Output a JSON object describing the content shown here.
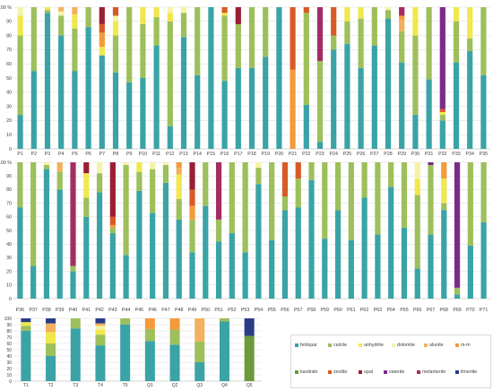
{
  "chart_data": {
    "type": "bar",
    "stacked": true,
    "legend": {
      "entries": [
        "feldspar",
        "calcite",
        "anhydrite",
        "dolomite",
        "alunite",
        "m-m",
        "kaolinite",
        "zeolite",
        "opal",
        "vaterite",
        "melanterite",
        "ilmenite"
      ],
      "placement": "bottom-right"
    },
    "series_colors": {
      "feldspar": "#3aa3a6",
      "calcite": "#9dbf5c",
      "anhydrite": "#f0e84c",
      "dolomite": "#f4f3a8",
      "alunite": "#f2b15e",
      "m-m": "#f49a3a",
      "kaolinite": "#6b9a3a",
      "zeolite": "#d85a26",
      "opal": "#9a1e32",
      "vaterite": "#7b2a8a",
      "melanterite": "#a52c63",
      "ilmenite": "#2a3c86"
    },
    "ytick_labels": [
      "0",
      "10",
      "20",
      "30",
      "40",
      "50",
      "60",
      "70",
      "80",
      "90",
      "100 %"
    ],
    "ytick_labels_small": [
      "0",
      "10",
      "20",
      "30",
      "40",
      "50",
      "60",
      "70",
      "80",
      "90",
      "100"
    ],
    "panels": [
      {
        "categories": [
          "P1",
          "P2",
          "P3",
          "P4",
          "P5",
          "P6",
          "P7",
          "P8",
          "P9",
          "P10",
          "P11",
          "P12",
          "P13",
          "P14",
          "P15",
          "P16",
          "P17",
          "P18",
          "P19",
          "P20",
          "P21",
          "P22",
          "P23",
          "P24",
          "P25",
          "P26",
          "P27",
          "P28",
          "P29",
          "P30",
          "P31",
          "P32",
          "P33",
          "P34",
          "P35"
        ],
        "ylim": [
          0,
          100
        ],
        "bars": [
          {
            "feldspar": 24,
            "calcite": 56,
            "anhydrite": 14,
            "dolomite": 6
          },
          {
            "feldspar": 55,
            "calcite": 45
          },
          {
            "feldspar": 96,
            "calcite": 2,
            "anhydrite": 2
          },
          {
            "feldspar": 80,
            "calcite": 14,
            "dolomite": 3,
            "alunite": 3
          },
          {
            "feldspar": 55,
            "calcite": 30,
            "anhydrite": 10,
            "alunite": 5
          },
          {
            "feldspar": 86,
            "calcite": 14
          },
          {
            "feldspar": 66,
            "anhydrite": 6,
            "m-m": 10,
            "zeolite": 6,
            "opal": 12
          },
          {
            "feldspar": 54,
            "calcite": 26,
            "anhydrite": 10,
            "dolomite": 4,
            "zeolite": 6
          },
          {
            "feldspar": 47,
            "calcite": 53
          },
          {
            "feldspar": 50,
            "calcite": 38,
            "anhydrite": 12
          },
          {
            "feldspar": 73,
            "calcite": 20,
            "anhydrite": 7
          },
          {
            "feldspar": 16,
            "calcite": 74,
            "anhydrite": 6,
            "dolomite": 4
          },
          {
            "feldspar": 79,
            "calcite": 17,
            "dolomite": 4
          },
          {
            "feldspar": 52,
            "calcite": 48
          },
          {
            "feldspar": 100
          },
          {
            "feldspar": 48,
            "calcite": 46,
            "anhydrite": 2,
            "zeolite": 4
          },
          {
            "feldspar": 57,
            "calcite": 31,
            "opal": 12
          },
          {
            "feldspar": 57,
            "calcite": 43
          },
          {
            "feldspar": 65,
            "calcite": 35
          },
          {
            "feldspar": 100
          },
          {
            "zeolite": 44,
            "m-m": 56
          },
          {
            "feldspar": 31,
            "calcite": 65,
            "zeolite": 4
          },
          {
            "feldspar": 5,
            "calcite": 57,
            "melanterite": 38
          },
          {
            "feldspar": 70,
            "calcite": 10,
            "zeolite": 20
          },
          {
            "feldspar": 74,
            "calcite": 16,
            "anhydrite": 10
          },
          {
            "feldspar": 57,
            "calcite": 35,
            "anhydrite": 8
          },
          {
            "feldspar": 73,
            "calcite": 27
          },
          {
            "feldspar": 92,
            "calcite": 6,
            "dolomite": 2
          },
          {
            "feldspar": 61,
            "calcite": 22,
            "alunite": 8,
            "m-m": 3,
            "melanterite": 6
          },
          {
            "feldspar": 24,
            "calcite": 56,
            "anhydrite": 20
          },
          {
            "feldspar": 49,
            "calcite": 51
          },
          {
            "feldspar": 20,
            "calcite": 4,
            "anhydrite": 2,
            "zeolite": 2,
            "vaterite": 72
          },
          {
            "feldspar": 61,
            "calcite": 29,
            "anhydrite": 10
          },
          {
            "feldspar": 69,
            "calcite": 9,
            "anhydrite": 22
          },
          {
            "feldspar": 52,
            "calcite": 48
          }
        ]
      },
      {
        "categories": [
          "P36",
          "P37",
          "P38",
          "P39",
          "P40",
          "P41",
          "P42",
          "P43",
          "P44",
          "P45",
          "P46",
          "P47",
          "P48",
          "P49",
          "P50",
          "P51",
          "P52",
          "P53",
          "P54",
          "P55",
          "P56",
          "P57",
          "P58",
          "P59",
          "P60",
          "P61",
          "P62",
          "P63",
          "P64",
          "P65",
          "P66",
          "P67",
          "P68",
          "P69",
          "P70",
          "P71"
        ],
        "ylim": [
          0,
          100
        ],
        "bars": [
          {
            "feldspar": 67,
            "calcite": 33
          },
          {
            "feldspar": 24,
            "calcite": 76
          },
          {
            "feldspar": 95,
            "calcite": 3,
            "dolomite": 2
          },
          {
            "feldspar": 80,
            "calcite": 13,
            "alunite": 7
          },
          {
            "feldspar": 20,
            "calcite": 4,
            "melanterite": 76
          },
          {
            "feldspar": 60,
            "calcite": 14,
            "anhydrite": 18,
            "opal": 8
          },
          {
            "feldspar": 78,
            "calcite": 14,
            "dolomite": 8
          },
          {
            "feldspar": 48,
            "calcite": 4,
            "m-m": 2,
            "zeolite": 6,
            "opal": 40
          },
          {
            "feldspar": 32,
            "calcite": 66,
            "dolomite": 2
          },
          {
            "feldspar": 79,
            "calcite": 14,
            "anhydrite": 7
          },
          {
            "feldspar": 63,
            "calcite": 32,
            "dolomite": 5
          },
          {
            "feldspar": 85,
            "calcite": 13,
            "dolomite": 2
          },
          {
            "feldspar": 58,
            "calcite": 15,
            "anhydrite": 18,
            "alunite": 5,
            "m-m": 4
          },
          {
            "feldspar": 34,
            "calcite": 24,
            "m-m": 10,
            "zeolite": 12,
            "opal": 20
          },
          {
            "feldspar": 68,
            "calcite": 32
          },
          {
            "feldspar": 42,
            "calcite": 16,
            "melanterite": 42
          },
          {
            "feldspar": 48,
            "calcite": 52
          },
          {
            "feldspar": 34,
            "calcite": 66
          },
          {
            "feldspar": 84,
            "calcite": 12,
            "dolomite": 4
          },
          {
            "feldspar": 43,
            "calcite": 57
          },
          {
            "feldspar": 65,
            "calcite": 10,
            "zeolite": 25
          },
          {
            "feldspar": 67,
            "calcite": 21,
            "zeolite": 12
          },
          {
            "feldspar": 87,
            "calcite": 13
          },
          {
            "feldspar": 44,
            "calcite": 56
          },
          {
            "feldspar": 65,
            "calcite": 35
          },
          {
            "feldspar": 43,
            "calcite": 57
          },
          {
            "feldspar": 74,
            "calcite": 26
          },
          {
            "feldspar": 47,
            "calcite": 53
          },
          {
            "feldspar": 82,
            "calcite": 18
          },
          {
            "feldspar": 52,
            "calcite": 48
          },
          {
            "feldspar": 22,
            "calcite": 54,
            "anhydrite": 12,
            "dolomite": 12
          },
          {
            "feldspar": 47,
            "calcite": 51,
            "vaterite": 2
          },
          {
            "feldspar": 65,
            "calcite": 5,
            "anhydrite": 18,
            "m-m": 12
          },
          {
            "feldspar": 3,
            "calcite": 5,
            "vaterite": 92
          },
          {
            "feldspar": 39,
            "calcite": 61
          },
          {
            "feldspar": 56,
            "calcite": 44
          }
        ]
      },
      {
        "categories": [
          "T1",
          "T2",
          "T3",
          "T4",
          "T5",
          "Q1",
          "Q2",
          "Q3",
          "Q4",
          "Q5"
        ],
        "ylim": [
          0,
          100
        ],
        "bars": [
          {
            "feldspar": 80,
            "calcite": 8,
            "anhydrite": 6,
            "ilmenite": 6
          },
          {
            "feldspar": 40,
            "calcite": 20,
            "anhydrite": 18,
            "alunite": 14,
            "ilmenite": 8
          },
          {
            "feldspar": 84,
            "calcite": 16
          },
          {
            "feldspar": 57,
            "calcite": 17,
            "anhydrite": 8,
            "dolomite": 6,
            "alunite": 4,
            "ilmenite": 8
          },
          {
            "feldspar": 90,
            "calcite": 10
          },
          {
            "feldspar": 64,
            "calcite": 19,
            "m-m": 17
          },
          {
            "feldspar": 58,
            "calcite": 24,
            "m-m": 18
          },
          {
            "feldspar": 30,
            "calcite": 33,
            "alunite": 37
          },
          {
            "feldspar": 95,
            "calcite": 5
          },
          {
            "kaolinite": 72,
            "ilmenite": 28
          }
        ]
      }
    ]
  }
}
